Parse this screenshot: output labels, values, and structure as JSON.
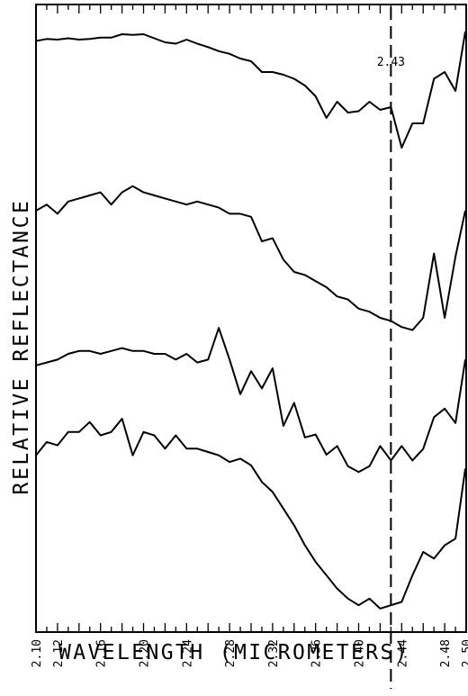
{
  "chart_data": {
    "type": "line",
    "title": "",
    "xlabel": "WAVELENGTH (MICROMETERS)",
    "ylabel": "RELATIVE REFLECTANCE",
    "xlim": [
      2.1,
      2.5
    ],
    "x_tick_labels": [
      "2.10",
      "2.12",
      "2.16",
      "2.20",
      "2.24",
      "2.28",
      "2.32",
      "2.36",
      "2.40",
      "2.44",
      "2.48",
      "2.50"
    ],
    "y_ticks_labeled": false,
    "annotation": {
      "label": "2.43",
      "x": 2.43,
      "style": "dashed vertical line"
    },
    "curves_stacked_offset": true,
    "x": [
      2.1,
      2.11,
      2.12,
      2.13,
      2.14,
      2.15,
      2.16,
      2.17,
      2.18,
      2.19,
      2.2,
      2.21,
      2.22,
      2.23,
      2.24,
      2.25,
      2.26,
      2.27,
      2.28,
      2.29,
      2.3,
      2.31,
      2.32,
      2.33,
      2.34,
      2.35,
      2.36,
      2.37,
      2.38,
      2.39,
      2.4,
      2.41,
      2.42,
      2.43,
      2.44,
      2.45,
      2.46,
      2.47,
      2.48,
      2.49,
      2.5
    ],
    "series": [
      {
        "values": [
          0.93,
          0.945,
          0.94,
          0.95,
          0.94,
          0.945,
          0.955,
          0.955,
          0.98,
          0.975,
          0.98,
          0.95,
          0.92,
          0.91,
          0.94,
          0.91,
          0.885,
          0.855,
          0.835,
          0.8,
          0.78,
          0.7,
          0.7,
          0.68,
          0.65,
          0.6,
          0.52,
          0.36,
          0.48,
          0.4,
          0.41,
          0.48,
          0.42,
          0.44,
          0.14,
          0.32,
          0.32,
          0.65,
          0.7,
          0.56,
          1.0
        ]
      },
      {
        "values": [
          0.8,
          0.84,
          0.78,
          0.86,
          0.88,
          0.9,
          0.92,
          0.84,
          0.92,
          0.96,
          0.92,
          0.9,
          0.88,
          0.86,
          0.84,
          0.86,
          0.84,
          0.82,
          0.78,
          0.78,
          0.76,
          0.6,
          0.62,
          0.48,
          0.4,
          0.38,
          0.34,
          0.3,
          0.24,
          0.22,
          0.16,
          0.14,
          0.1,
          0.08,
          0.04,
          0.02,
          0.1,
          0.52,
          0.1,
          0.5,
          0.8
        ]
      },
      {
        "values": [
          0.62,
          0.64,
          0.66,
          0.7,
          0.72,
          0.72,
          0.7,
          0.72,
          0.74,
          0.72,
          0.72,
          0.7,
          0.7,
          0.66,
          0.7,
          0.64,
          0.66,
          0.88,
          0.66,
          0.42,
          0.58,
          0.46,
          0.6,
          0.2,
          0.36,
          0.12,
          0.14,
          0.0,
          0.06,
          -0.08,
          -0.12,
          -0.08,
          0.06,
          -0.04,
          0.06,
          -0.04,
          0.04,
          0.26,
          0.32,
          0.22,
          0.66
        ]
      },
      {
        "values": [
          0.78,
          0.86,
          0.84,
          0.92,
          0.92,
          0.98,
          0.9,
          0.92,
          1.0,
          0.78,
          0.92,
          0.9,
          0.82,
          0.9,
          0.82,
          0.82,
          0.8,
          0.78,
          0.74,
          0.76,
          0.72,
          0.62,
          0.56,
          0.46,
          0.36,
          0.24,
          0.14,
          0.06,
          -0.02,
          -0.08,
          -0.12,
          -0.08,
          -0.14,
          -0.12,
          -0.1,
          0.06,
          0.2,
          0.16,
          0.24,
          0.28,
          0.7
        ]
      }
    ]
  }
}
